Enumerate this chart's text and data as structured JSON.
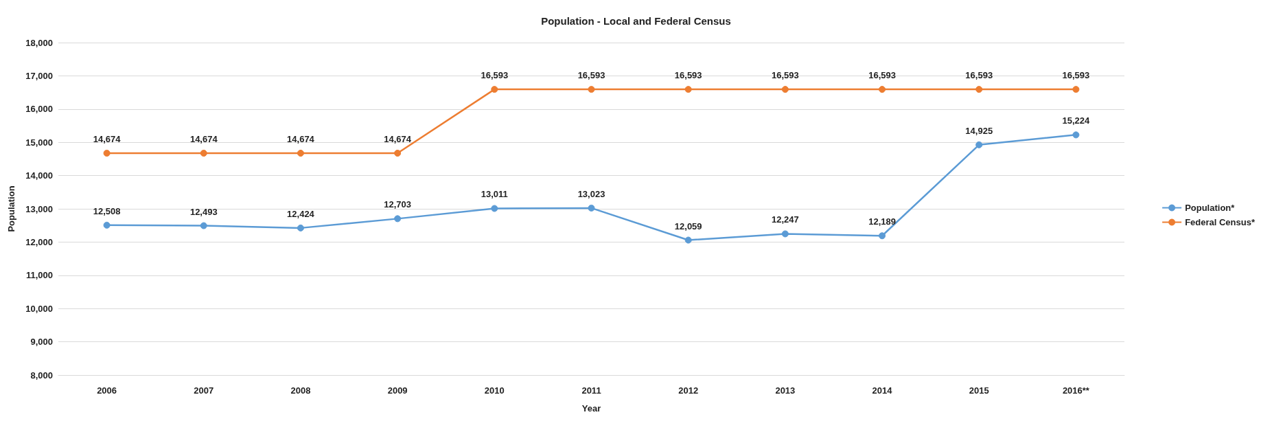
{
  "chart_data": {
    "type": "line",
    "title": "Population - Local and Federal Census",
    "xlabel": "Year",
    "ylabel": "Population",
    "categories": [
      "2006",
      "2007",
      "2008",
      "2009",
      "2010",
      "2011",
      "2012",
      "2013",
      "2014",
      "2015",
      "2016**"
    ],
    "series": [
      {
        "name": "Population*",
        "color": "#5b9bd5",
        "values": [
          12508,
          12493,
          12424,
          12703,
          13011,
          13023,
          12059,
          12247,
          12189,
          14925,
          15224
        ],
        "value_labels": [
          "12,508",
          "12,493",
          "12,424",
          "12,703",
          "13,011",
          "13,023",
          "12,059",
          "12,247",
          "12,189",
          "14,925",
          "15,224"
        ]
      },
      {
        "name": "Federal Census*",
        "color": "#ed7d31",
        "values": [
          14674,
          14674,
          14674,
          14674,
          16593,
          16593,
          16593,
          16593,
          16593,
          16593,
          16593
        ],
        "value_labels": [
          "14,674",
          "14,674",
          "14,674",
          "14,674",
          "16,593",
          "16,593",
          "16,593",
          "16,593",
          "16,593",
          "16,593",
          "16,593"
        ]
      }
    ],
    "ylim": [
      8000,
      18000
    ],
    "yticks": [
      {
        "value": 8000,
        "label": "8,000"
      },
      {
        "value": 9000,
        "label": "9,000"
      },
      {
        "value": 10000,
        "label": "10,000"
      },
      {
        "value": 11000,
        "label": "11,000"
      },
      {
        "value": 12000,
        "label": "12,000"
      },
      {
        "value": 13000,
        "label": "13,000"
      },
      {
        "value": 14000,
        "label": "14,000"
      },
      {
        "value": 15000,
        "label": "15,000"
      },
      {
        "value": 16000,
        "label": "16,000"
      },
      {
        "value": 17000,
        "label": "17,000"
      },
      {
        "value": 18000,
        "label": "18,000"
      }
    ],
    "grid": "y",
    "legend": "right",
    "marker": "circle",
    "line_style": "solid"
  }
}
